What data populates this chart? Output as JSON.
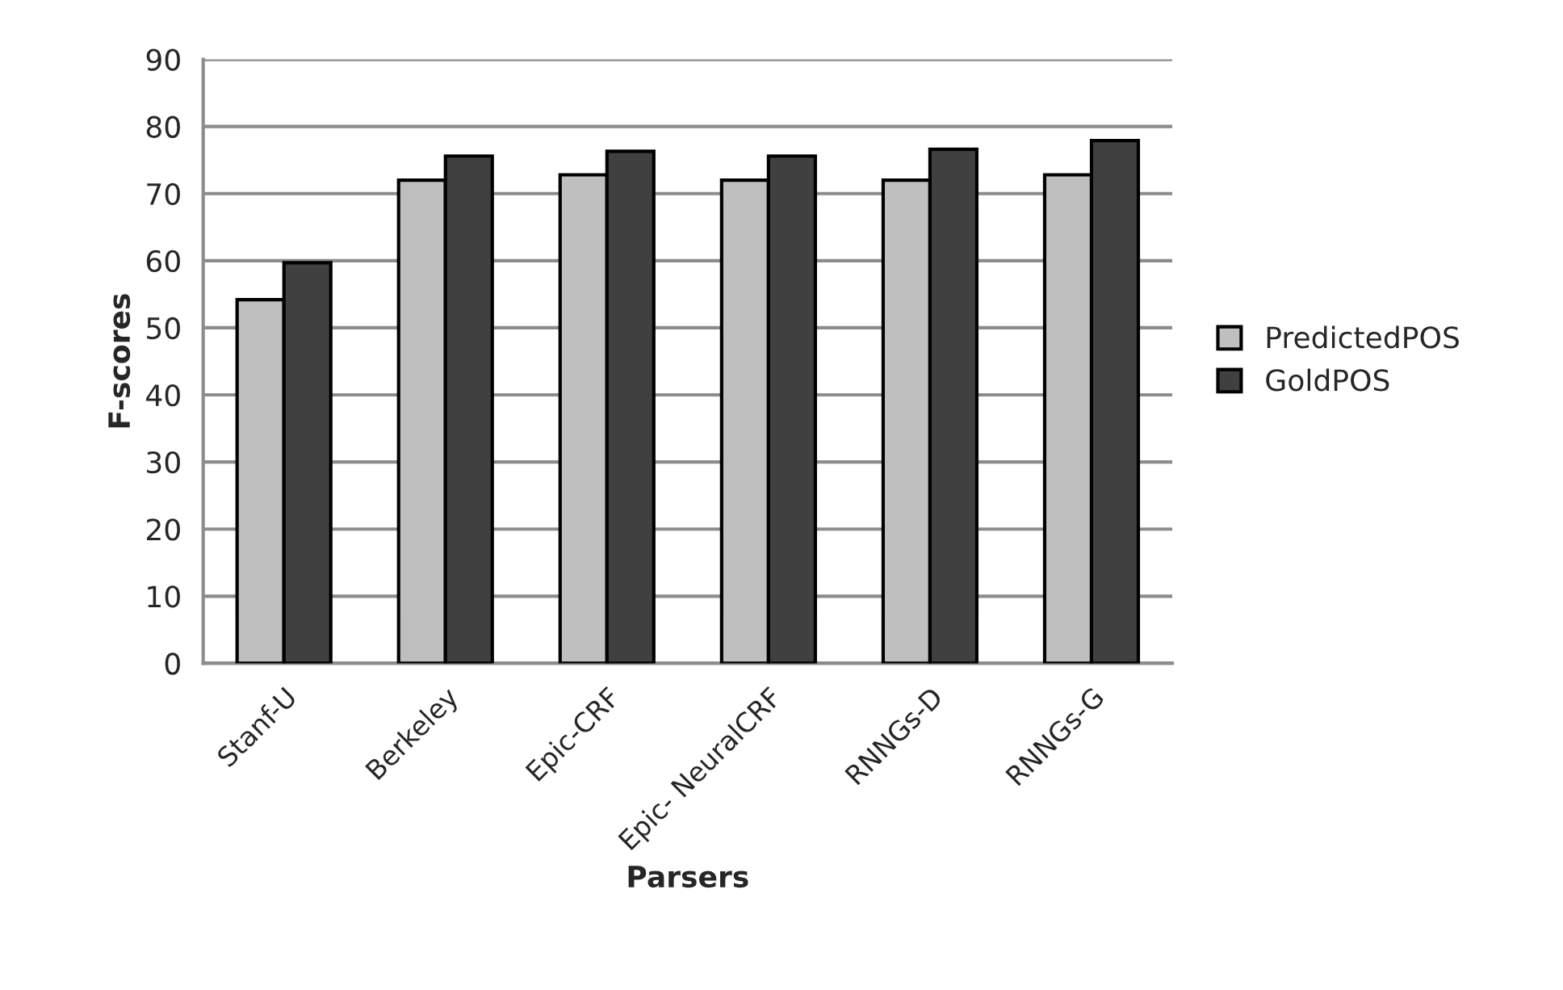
{
  "chart_data": {
    "type": "bar",
    "xlabel": "Parsers",
    "ylabel": "F-scores",
    "categories": [
      "Stanf-U",
      "Berkeley",
      "Epic-CRF",
      "Epic- NeuralCRF",
      "RNNGs-D",
      "RNNGs-G"
    ],
    "series": [
      {
        "name": "PredictedPOS",
        "color": "#bfbfbf",
        "values": [
          54.2,
          72.0,
          72.8,
          72.0,
          72.0,
          72.8
        ]
      },
      {
        "name": "GoldPOS",
        "color": "#404040",
        "values": [
          59.7,
          75.6,
          76.3,
          75.6,
          76.6,
          77.9
        ]
      }
    ],
    "ylim": [
      0,
      90
    ],
    "yticks": [
      0,
      10,
      20,
      30,
      40,
      50,
      60,
      70,
      80,
      90
    ],
    "grid": "y",
    "legend": "right"
  }
}
